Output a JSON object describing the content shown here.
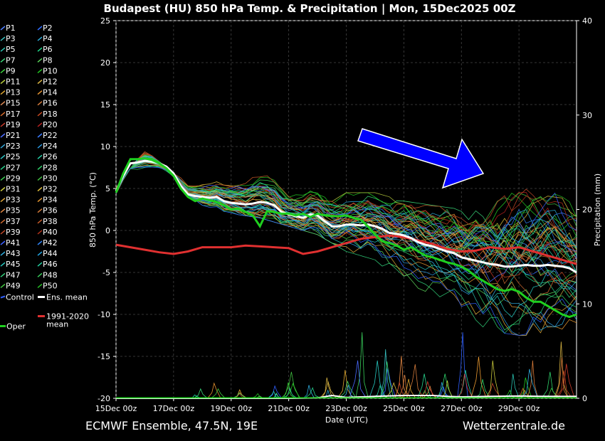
{
  "chart_data": {
    "type": "line",
    "title": "Budapest  (HU)  850 hPa Temp. & Precipitation | Mon, 15Dec2025 00Z",
    "xlabel": "Date (UTC)",
    "ylabel": "850 hPa Temp. (°C)",
    "y2label": "Precipitation (mm)",
    "footer_left": "ECMWF Ensemble, 47.5N, 19E",
    "footer_right": "Wetterzentrale.de",
    "xlim": [
      0,
      16
    ],
    "ylim": [
      -20,
      25
    ],
    "y2lim": [
      0,
      40
    ],
    "x_tick_positions": [
      0,
      2,
      4,
      6,
      8,
      10,
      12,
      14
    ],
    "x_tick_labels": [
      "15Dec 00z",
      "17Dec 00z",
      "19Dec 00z",
      "21Dec 00z",
      "23Dec 00z",
      "25Dec 00z",
      "27Dec 00z",
      "29Dec 00z"
    ],
    "y_ticks": [
      25,
      20,
      15,
      10,
      5,
      0,
      -5,
      -10,
      -15,
      -20
    ],
    "y2_ticks": [
      40,
      30,
      20,
      10,
      0
    ],
    "grid": true,
    "legend_position": "left",
    "members": {
      "labels": [
        "P1",
        "P2",
        "P3",
        "P4",
        "P5",
        "P6",
        "P7",
        "P8",
        "P9",
        "P10",
        "P11",
        "P12",
        "P13",
        "P14",
        "P15",
        "P16",
        "P17",
        "P18",
        "P19",
        "P20",
        "P21",
        "P22",
        "P23",
        "P24",
        "P25",
        "P26",
        "P27",
        "P28",
        "P29",
        "P30",
        "P31",
        "P32",
        "P33",
        "P34",
        "P35",
        "P36",
        "P37",
        "P38",
        "P39",
        "P40",
        "P41",
        "P42",
        "P43",
        "P44",
        "P45",
        "P46",
        "P47",
        "P48",
        "P49",
        "P50"
      ],
      "colors": [
        "#4a7cff",
        "#2f6cff",
        "#35c0c0",
        "#2aa9d6",
        "#29c4b3",
        "#1fd98a",
        "#39d879",
        "#5ad45a",
        "#3dd63d",
        "#22c922",
        "#b5c93b",
        "#d4b040",
        "#e0a830",
        "#e89530",
        "#e08a55",
        "#d47a3a",
        "#d66a2a",
        "#c74820",
        "#c93a2a",
        "#b82020",
        "#4a6aff",
        "#3a7cff",
        "#30a6d8",
        "#2a98e0",
        "#2cc6c6",
        "#25d0a8",
        "#27d38c",
        "#2fd26a",
        "#38d050",
        "#40c040",
        "#c8c83a",
        "#d8b83a",
        "#e0a838",
        "#e89830",
        "#e68a45",
        "#d67a38",
        "#d06a30",
        "#c85a28",
        "#c04828",
        "#b03018",
        "#3a5eff",
        "#2e80f0",
        "#2eaee0",
        "#22a6e6",
        "#26c8c0",
        "#22d0a0",
        "#30d07a",
        "#38cc5a",
        "#40c840",
        "#25c025"
      ]
    },
    "legend_extra": [
      {
        "label": "Control",
        "color": "#2f5fff"
      },
      {
        "label": "Ens. mean",
        "color": "#ffffff"
      },
      {
        "label": "1991-2020 mean",
        "label_lines": [
          "1991-2020",
          "mean"
        ],
        "color": "#e03030"
      },
      {
        "label": "Oper",
        "color": "#1fd01f"
      }
    ],
    "ens_mean": {
      "x": [
        0,
        0.25,
        0.5,
        0.75,
        1,
        1.25,
        1.5,
        1.75,
        2,
        2.25,
        2.5,
        2.75,
        3,
        3.25,
        3.5,
        3.75,
        4,
        4.25,
        4.5,
        4.75,
        5,
        5.25,
        5.5,
        5.75,
        6,
        6.25,
        6.5,
        6.75,
        7,
        7.25,
        7.5,
        7.75,
        8,
        8.25,
        8.5,
        8.75,
        9,
        9.25,
        9.5,
        9.75,
        10,
        10.25,
        10.5,
        10.75,
        11,
        11.25,
        11.5,
        11.75,
        12,
        12.25,
        12.5,
        12.75,
        13,
        13.25,
        13.5,
        13.75,
        14,
        14.25,
        14.5,
        14.75,
        15,
        15.25,
        15.5,
        15.75,
        16
      ],
      "y": [
        4.7,
        6.5,
        8.0,
        8.1,
        8.3,
        8.2,
        8.0,
        7.6,
        6.8,
        5.3,
        4.3,
        4.1,
        4.0,
        3.9,
        4.0,
        3.5,
        3.3,
        3.2,
        3.1,
        3.2,
        3.4,
        3.3,
        3.0,
        2.2,
        1.9,
        1.7,
        1.5,
        1.9,
        1.8,
        1.1,
        0.5,
        0.5,
        0.7,
        0.7,
        0.6,
        0.7,
        0.5,
        0.2,
        -0.3,
        -0.4,
        -0.6,
        -0.9,
        -1.4,
        -1.7,
        -1.9,
        -2.2,
        -2.5,
        -2.7,
        -3.2,
        -3.4,
        -3.6,
        -3.8,
        -4.0,
        -4.1,
        -4.3,
        -4.3,
        -4.2,
        -4.1,
        -4.2,
        -4.2,
        -4.1,
        -4.2,
        -4.3,
        -4.5,
        -5.0
      ]
    },
    "oper": {
      "x": [
        0,
        0.25,
        0.5,
        0.75,
        1,
        1.25,
        1.5,
        1.75,
        2,
        2.25,
        2.5,
        2.75,
        3,
        3.25,
        3.5,
        3.75,
        4,
        4.25,
        4.5,
        4.75,
        5,
        5.25,
        5.5,
        5.75,
        6,
        6.25,
        6.5,
        6.75,
        7,
        7.25,
        7.5,
        7.75,
        8,
        8.25,
        8.5,
        8.75,
        9,
        9.25,
        9.5,
        9.75,
        10,
        10.25,
        10.5,
        10.75,
        11,
        11.25,
        11.5,
        11.75,
        12,
        12.25,
        12.5,
        12.75,
        13,
        13.25,
        13.5,
        13.75,
        14,
        14.25,
        14.5,
        14.75,
        15,
        15.25,
        15.5,
        15.75,
        16
      ],
      "y": [
        4.5,
        6.8,
        8.5,
        8.5,
        8.6,
        8.4,
        8.0,
        7.4,
        6.5,
        5.0,
        4.0,
        3.5,
        3.8,
        3.6,
        3.4,
        3.0,
        2.5,
        2.6,
        2.2,
        1.8,
        0.5,
        2.3,
        2.2,
        2.0,
        2.0,
        1.8,
        2.0,
        1.6,
        2.0,
        1.8,
        1.7,
        1.7,
        1.8,
        1.5,
        1.3,
        0.5,
        -0.5,
        -1.3,
        -1.5,
        -1.8,
        -2.3,
        -2.0,
        -2.5,
        -3.0,
        -3.2,
        -3.5,
        -3.8,
        -4.0,
        -4.3,
        -4.8,
        -5.5,
        -6.0,
        -6.5,
        -7.0,
        -7.2,
        -7.0,
        -7.3,
        -8.0,
        -8.5,
        -8.5,
        -9.0,
        -9.5,
        -10.0,
        -10.3,
        -10.0
      ]
    },
    "clim_mean": {
      "x": [
        0,
        0.5,
        1,
        1.5,
        2,
        2.5,
        3,
        3.5,
        4,
        4.5,
        5,
        5.5,
        6,
        6.5,
        7,
        7.5,
        8,
        8.5,
        9,
        9.5,
        10,
        10.5,
        11,
        11.5,
        12,
        12.5,
        13,
        13.5,
        14,
        14.5,
        15,
        15.5,
        16
      ],
      "y": [
        -1.7,
        -2.0,
        -2.3,
        -2.6,
        -2.8,
        -2.5,
        -2.0,
        -2.0,
        -2.0,
        -1.8,
        -1.9,
        -2.0,
        -2.1,
        -2.8,
        -2.5,
        -2.0,
        -1.5,
        -1.0,
        -0.8,
        -0.6,
        -0.8,
        -1.2,
        -1.6,
        -2.2,
        -2.5,
        -2.4,
        -2.0,
        -2.2,
        -2.0,
        -2.5,
        -3.0,
        -3.5,
        -4.0
      ]
    },
    "spread": {
      "x": [
        0,
        1,
        2,
        3,
        4,
        5,
        6,
        7,
        8,
        9,
        10,
        11,
        12,
        13,
        14,
        15,
        16
      ],
      "low": [
        4.2,
        7.5,
        5.5,
        3.0,
        2.0,
        1.5,
        0.5,
        -0.5,
        -2.5,
        -3.5,
        -6.5,
        -7.5,
        -10.0,
        -12.0,
        -12.5,
        -12.5,
        -11.0
      ],
      "high": [
        5.2,
        9.6,
        6.8,
        5.6,
        6.0,
        7.4,
        5.0,
        5.0,
        4.5,
        4.5,
        3.5,
        3.0,
        2.5,
        4.5,
        7.0,
        5.0,
        3.0
      ]
    },
    "precip_events": [
      {
        "x": 2.8,
        "max": 1.0
      },
      {
        "x": 3.5,
        "max": 1.6
      },
      {
        "x": 4.4,
        "max": 0.9
      },
      {
        "x": 4.9,
        "max": 0.5
      },
      {
        "x": 5.5,
        "max": 1.3
      },
      {
        "x": 6.0,
        "max": 2.8
      },
      {
        "x": 6.7,
        "max": 1.4
      },
      {
        "x": 7.3,
        "max": 2.2
      },
      {
        "x": 8.0,
        "max": 3.0
      },
      {
        "x": 8.5,
        "max": 7.0
      },
      {
        "x": 9.1,
        "max": 4.0
      },
      {
        "x": 9.5,
        "max": 5.2
      },
      {
        "x": 9.9,
        "max": 4.5
      },
      {
        "x": 10.3,
        "max": 3.6
      },
      {
        "x": 10.8,
        "max": 2.6
      },
      {
        "x": 11.4,
        "max": 2.6
      },
      {
        "x": 12.0,
        "max": 7.0
      },
      {
        "x": 12.6,
        "max": 4.4
      },
      {
        "x": 13.1,
        "max": 4.0
      },
      {
        "x": 13.7,
        "max": 2.6
      },
      {
        "x": 14.1,
        "max": 2.2
      },
      {
        "x": 14.5,
        "max": 4.0
      },
      {
        "x": 15.0,
        "max": 2.8
      },
      {
        "x": 15.6,
        "max": 6.0
      }
    ],
    "ens_mean_precip": {
      "x": [
        0,
        2,
        4,
        6,
        7,
        7.5,
        8,
        9,
        10,
        11,
        11.5,
        12,
        13,
        14,
        15,
        16
      ],
      "y": [
        0,
        0,
        0,
        0,
        0.05,
        0.3,
        0.1,
        0.2,
        0.3,
        0.3,
        0.2,
        0.15,
        0.2,
        0.25,
        0.2,
        0.2
      ]
    },
    "annotation": "blue arrow pointing to late-December temperature drop"
  }
}
